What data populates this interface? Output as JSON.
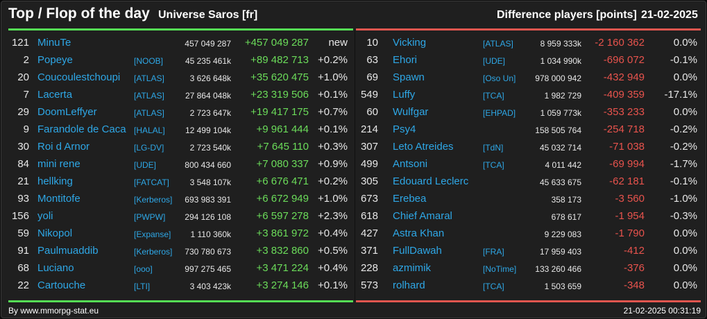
{
  "header": {
    "title": "Top / Flop of the day",
    "universe": "Universe Saros [fr]",
    "metric": "Difference players [points]",
    "date": "21-02-2025"
  },
  "colors": {
    "background": "#1f1f1f",
    "top_accent": "#55dd55",
    "flop_accent": "#e0564f",
    "name": "#2ea7e6",
    "gain": "#6bdc5a",
    "loss": "#e8534d"
  },
  "top": [
    {
      "rank": "121",
      "name": "MinuTe",
      "tag": "",
      "score": "457 049 287",
      "diff": "+457 049 287",
      "pct": "new"
    },
    {
      "rank": "2",
      "name": "Popeye",
      "tag": "[NOOB]",
      "score": "45 235 461k",
      "diff": "+89 482 713",
      "pct": "+0.2%"
    },
    {
      "rank": "20",
      "name": "Coucoulestchoupi",
      "tag": "[ATLAS]",
      "score": "3 626 648k",
      "diff": "+35 620 475",
      "pct": "+1.0%"
    },
    {
      "rank": "7",
      "name": "Lacerta",
      "tag": "[ATLAS]",
      "score": "27 864 048k",
      "diff": "+23 319 506",
      "pct": "+0.1%"
    },
    {
      "rank": "29",
      "name": "DoomLeffyer",
      "tag": "[ATLAS]",
      "score": "2 723 647k",
      "diff": "+19 417 175",
      "pct": "+0.7%"
    },
    {
      "rank": "9",
      "name": "Farandole de Caca",
      "tag": "[HALAL]",
      "score": "12 499 104k",
      "diff": "+9 961 444",
      "pct": "+0.1%"
    },
    {
      "rank": "30",
      "name": "Roi d Arnor",
      "tag": "[LG-DV]",
      "score": "2 723 540k",
      "diff": "+7 645 110",
      "pct": "+0.3%"
    },
    {
      "rank": "84",
      "name": "mini rene",
      "tag": "[UDE]",
      "score": "800 434 660",
      "diff": "+7 080 337",
      "pct": "+0.9%"
    },
    {
      "rank": "21",
      "name": "hellking",
      "tag": "[FATCAT]",
      "score": "3 548 107k",
      "diff": "+6 676 471",
      "pct": "+0.2%"
    },
    {
      "rank": "93",
      "name": "Montitofe",
      "tag": "[Kerberos]",
      "score": "693 983 391",
      "diff": "+6 672 949",
      "pct": "+1.0%"
    },
    {
      "rank": "156",
      "name": "yoli",
      "tag": "[PWPW]",
      "score": "294 126 108",
      "diff": "+6 597 278",
      "pct": "+2.3%"
    },
    {
      "rank": "59",
      "name": "Nikopol",
      "tag": "[Expanse]",
      "score": "1 110 360k",
      "diff": "+3 861 972",
      "pct": "+0.4%"
    },
    {
      "rank": "91",
      "name": "Paulmuaddib",
      "tag": "[Kerberos]",
      "score": "730 780 673",
      "diff": "+3 832 860",
      "pct": "+0.5%"
    },
    {
      "rank": "68",
      "name": "Luciano",
      "tag": "[ooo]",
      "score": "997 275 465",
      "diff": "+3 471 224",
      "pct": "+0.4%"
    },
    {
      "rank": "22",
      "name": "Cartouche",
      "tag": "[LTI]",
      "score": "3 403 423k",
      "diff": "+3 274 146",
      "pct": "+0.1%"
    }
  ],
  "flop": [
    {
      "rank": "10",
      "name": "Vicking",
      "tag": "[ATLAS]",
      "score": "8 959 333k",
      "diff": "-2 160 362",
      "pct": "0.0%"
    },
    {
      "rank": "63",
      "name": "Ehori",
      "tag": "[UDE]",
      "score": "1 034 990k",
      "diff": "-696 072",
      "pct": "-0.1%"
    },
    {
      "rank": "69",
      "name": "Spawn",
      "tag": "[Oso Un]",
      "score": "978 000 942",
      "diff": "-432 949",
      "pct": "0.0%"
    },
    {
      "rank": "549",
      "name": "Luffy",
      "tag": "[TCA]",
      "score": "1 982 729",
      "diff": "-409 359",
      "pct": "-17.1%"
    },
    {
      "rank": "60",
      "name": "Wulfgar",
      "tag": "[EHPAD]",
      "score": "1 059 773k",
      "diff": "-353 233",
      "pct": "0.0%"
    },
    {
      "rank": "214",
      "name": "Psy4",
      "tag": "",
      "score": "158 505 764",
      "diff": "-254 718",
      "pct": "-0.2%"
    },
    {
      "rank": "307",
      "name": "Leto Atreides",
      "tag": "[TdN]",
      "score": "45 032 714",
      "diff": "-71 038",
      "pct": "-0.2%"
    },
    {
      "rank": "499",
      "name": "Antsoni",
      "tag": "[TCA]",
      "score": "4 011 442",
      "diff": "-69 994",
      "pct": "-1.7%"
    },
    {
      "rank": "305",
      "name": "Edouard Leclerc",
      "tag": "",
      "score": "45 633 675",
      "diff": "-62 181",
      "pct": "-0.1%"
    },
    {
      "rank": "673",
      "name": "Erebea",
      "tag": "",
      "score": "358 173",
      "diff": "-3 560",
      "pct": "-1.0%"
    },
    {
      "rank": "618",
      "name": "Chief Amaral",
      "tag": "",
      "score": "678 617",
      "diff": "-1 954",
      "pct": "-0.3%"
    },
    {
      "rank": "427",
      "name": "Astra Khan",
      "tag": "",
      "score": "9 229 083",
      "diff": "-1 790",
      "pct": "0.0%"
    },
    {
      "rank": "371",
      "name": "FullDawah",
      "tag": "[FRA]",
      "score": "17 959 403",
      "diff": "-412",
      "pct": "0.0%"
    },
    {
      "rank": "228",
      "name": "azmimik",
      "tag": "[NoTime]",
      "score": "133 260 466",
      "diff": "-376",
      "pct": "0.0%"
    },
    {
      "rank": "573",
      "name": "rolhard",
      "tag": "[TCA]",
      "score": "1 503 659",
      "diff": "-348",
      "pct": "0.0%"
    }
  ],
  "footer": {
    "credit": "By www.mmorpg-stat.eu",
    "timestamp": "21-02-2025 00:31:19"
  }
}
